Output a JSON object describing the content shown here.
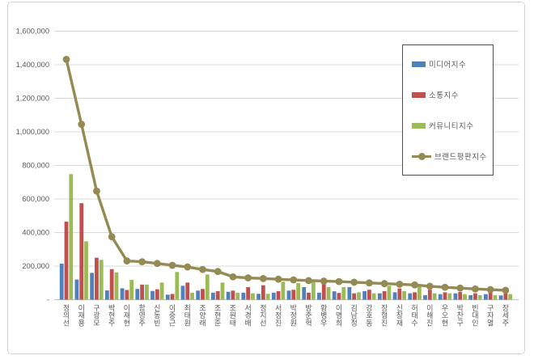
{
  "chart_data": {
    "type": "bar",
    "title": "",
    "xlabel": "",
    "ylabel": "",
    "ylim": [
      0,
      1600000
    ],
    "ytick_step": 200000,
    "ytick_labels_bottom_to_top": [
      "-",
      "200,000",
      "400,000",
      "600,000",
      "800,000",
      "1,000,000",
      "1,200,000",
      "1,400,000",
      "1,600,000"
    ],
    "grid": true,
    "legend_position": "upper-right",
    "categories": [
      "정의선",
      "이재용",
      "구광모",
      "박현주",
      "이재현",
      "함영주",
      "신동빈",
      "이중근",
      "최태원",
      "조양래",
      "조현준",
      "조원태",
      "서경배",
      "정지선",
      "서정진",
      "박정원",
      "방준혁",
      "황병우",
      "이명희",
      "김남정",
      "강호동",
      "장형진",
      "신창재",
      "허태수",
      "이해진",
      "우오현",
      "박찬구",
      "빈대인",
      "구자열",
      "장세주"
    ],
    "series": [
      {
        "name": "미디어지수",
        "type": "bar",
        "color": "#4F81BD",
        "values": [
          215000,
          120000,
          160000,
          55000,
          68000,
          64000,
          52000,
          30000,
          83000,
          54000,
          42000,
          47000,
          42000,
          35000,
          42000,
          54000,
          75000,
          42000,
          50000,
          75000,
          51000,
          38000,
          44000,
          38000,
          27000,
          33000,
          38000,
          27000,
          33000,
          25000
        ]
      },
      {
        "name": "소통지수",
        "type": "bar",
        "color": "#C0504D",
        "values": [
          465000,
          575000,
          250000,
          182000,
          58000,
          90000,
          62000,
          34000,
          102000,
          64000,
          51000,
          54000,
          75000,
          86000,
          51000,
          59000,
          42000,
          99000,
          40000,
          38000,
          59000,
          51000,
          67000,
          44000,
          59000,
          44000,
          46000,
          38000,
          44000,
          38000
        ]
      },
      {
        "name": "커뮤니티지수",
        "type": "bar",
        "color": "#9BBB59",
        "values": [
          748000,
          348000,
          237000,
          163000,
          118000,
          90000,
          102000,
          165000,
          42000,
          150000,
          102000,
          42000,
          38000,
          35000,
          107000,
          99000,
          107000,
          75000,
          75000,
          44000,
          38000,
          83000,
          51000,
          88000,
          38000,
          38000,
          33000,
          27000,
          27000,
          33000
        ]
      },
      {
        "name": "브랜드평판지수",
        "type": "line",
        "color": "#948A54",
        "values": [
          1432000,
          1045000,
          647000,
          375000,
          231000,
          226000,
          216000,
          205000,
          195000,
          180000,
          168000,
          136000,
          130000,
          126000,
          122000,
          118000,
          114000,
          111000,
          108000,
          104000,
          100000,
          96000,
          92000,
          88000,
          80000,
          74000,
          69000,
          64000,
          60000,
          56000
        ]
      }
    ],
    "colors": {
      "gridline": "#d9d9d9",
      "axis_line": "#bfbfbf",
      "tick_text": "#595959"
    }
  }
}
